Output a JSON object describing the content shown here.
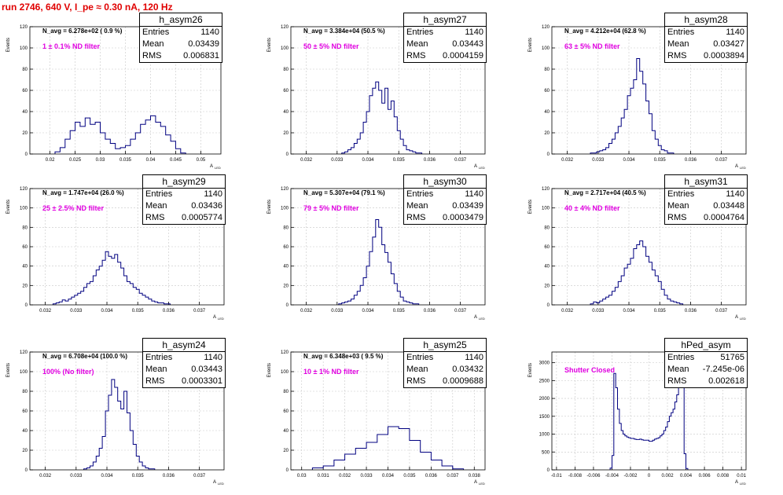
{
  "page": {
    "title": "run 2746,   640 V, I_pe ≈ 0.30 nA, 120 Hz"
  },
  "colors": {
    "hist": "#000080",
    "title": "#e00000",
    "filter_text": "#e000e0",
    "grid": "#c8c8c8"
  },
  "axis_labels": {
    "y": "Events",
    "x": "A",
    "x_sub": "LED"
  },
  "stat_labels": {
    "entries": "Entries",
    "mean": "Mean",
    "rms": "RMS"
  },
  "panels": [
    {
      "name": "h_asym26",
      "entries": "1140",
      "mean": "0.03439",
      "rms": "0.006831",
      "navg": "N_avg = 6.278e+02 ( 0.9 %)",
      "filter": "1 ± 0.1% ND filter",
      "chart_data": {
        "type": "bar",
        "xlim": [
          0.016,
          0.054
        ],
        "ylim": [
          0,
          120
        ],
        "yticks": [
          "0",
          "20",
          "40",
          "60",
          "80",
          "100",
          "120"
        ],
        "xticks": [
          "0.02",
          "0.025",
          "0.03",
          "0.035",
          "0.04",
          "0.045",
          "0.05"
        ],
        "bin_centers": [
          0.0215,
          0.0225,
          0.0235,
          0.0245,
          0.0255,
          0.0265,
          0.0275,
          0.0285,
          0.0295,
          0.0305,
          0.0315,
          0.0325,
          0.0335,
          0.0345,
          0.0355,
          0.0365,
          0.0375,
          0.0385,
          0.0395,
          0.0405,
          0.0415,
          0.0425,
          0.0435,
          0.0445,
          0.0455,
          0.0465
        ],
        "values": [
          2,
          6,
          14,
          22,
          30,
          26,
          34,
          28,
          30,
          20,
          14,
          10,
          5,
          6,
          8,
          14,
          20,
          28,
          32,
          36,
          30,
          26,
          18,
          12,
          5,
          1
        ]
      }
    },
    {
      "name": "h_asym27",
      "entries": "1140",
      "mean": "0.03443",
      "rms": "0.0004159",
      "navg": "N_avg = 3.384e+04 (50.5 %)",
      "filter": "50 ± 5% ND filter",
      "chart_data": {
        "type": "bar",
        "xlim": [
          0.0315,
          0.0378
        ],
        "ylim": [
          0,
          120
        ],
        "yticks": [
          "0",
          "20",
          "40",
          "60",
          "80",
          "100",
          "120"
        ],
        "xticks": [
          "0.032",
          "0.033",
          "0.034",
          "0.035",
          "0.036",
          "0.037"
        ],
        "bin_centers": [
          0.0332,
          0.0333,
          0.0334,
          0.0335,
          0.0336,
          0.0337,
          0.0338,
          0.0339,
          0.034,
          0.0341,
          0.0342,
          0.0343,
          0.0344,
          0.0345,
          0.0346,
          0.0347,
          0.0348,
          0.0349,
          0.035,
          0.0351,
          0.0352,
          0.0353,
          0.0354,
          0.0355,
          0.0356,
          0.0357
        ],
        "values": [
          1,
          2,
          4,
          6,
          10,
          14,
          20,
          30,
          40,
          55,
          62,
          68,
          60,
          48,
          62,
          42,
          50,
          35,
          22,
          14,
          8,
          4,
          3,
          2,
          1,
          1
        ]
      }
    },
    {
      "name": "h_asym28",
      "entries": "1140",
      "mean": "0.03427",
      "rms": "0.0003894",
      "navg": "N_avg = 4.212e+04 (62.8 %)",
      "filter": "63 ± 5% ND filter",
      "chart_data": {
        "type": "bar",
        "xlim": [
          0.0315,
          0.0378
        ],
        "ylim": [
          0,
          120
        ],
        "yticks": [
          "0",
          "20",
          "40",
          "60",
          "80",
          "100",
          "120"
        ],
        "xticks": [
          "0.032",
          "0.033",
          "0.034",
          "0.035",
          "0.036",
          "0.037"
        ],
        "bin_centers": [
          0.0328,
          0.0329,
          0.033,
          0.0331,
          0.0332,
          0.0333,
          0.0334,
          0.0335,
          0.0336,
          0.0337,
          0.0338,
          0.0339,
          0.034,
          0.0341,
          0.0342,
          0.0343,
          0.0344,
          0.0345,
          0.0346,
          0.0347,
          0.0348,
          0.0349,
          0.035,
          0.0351,
          0.0352,
          0.0353,
          0.0354
        ],
        "values": [
          1,
          1,
          2,
          3,
          4,
          6,
          10,
          14,
          20,
          26,
          34,
          42,
          55,
          62,
          70,
          90,
          78,
          66,
          50,
          38,
          22,
          14,
          8,
          4,
          3,
          1,
          1
        ]
      }
    },
    {
      "name": "h_asym29",
      "entries": "1140",
      "mean": "0.03436",
      "rms": "0.0005774",
      "navg": "N_avg = 1.747e+04 (26.0 %)",
      "filter": "25 ± 2.5% ND filter",
      "chart_data": {
        "type": "bar",
        "xlim": [
          0.0315,
          0.0378
        ],
        "ylim": [
          0,
          120
        ],
        "yticks": [
          "0",
          "20",
          "40",
          "60",
          "80",
          "100",
          "120"
        ],
        "xticks": [
          "0.032",
          "0.033",
          "0.034",
          "0.035",
          "0.036",
          "0.037"
        ],
        "bin_centers": [
          0.0323,
          0.0324,
          0.0325,
          0.0326,
          0.0327,
          0.0328,
          0.0329,
          0.033,
          0.0331,
          0.0332,
          0.0333,
          0.0334,
          0.0335,
          0.0336,
          0.0337,
          0.0338,
          0.0339,
          0.034,
          0.0341,
          0.0342,
          0.0343,
          0.0344,
          0.0345,
          0.0346,
          0.0347,
          0.0348,
          0.0349,
          0.035,
          0.0351,
          0.0352,
          0.0353,
          0.0354,
          0.0355,
          0.0356,
          0.0357,
          0.0358,
          0.0359,
          0.036
        ],
        "values": [
          1,
          2,
          3,
          5,
          4,
          6,
          8,
          10,
          12,
          14,
          18,
          22,
          24,
          30,
          36,
          40,
          46,
          55,
          50,
          48,
          52,
          44,
          38,
          30,
          24,
          22,
          18,
          16,
          12,
          10,
          8,
          6,
          4,
          3,
          2,
          2,
          1,
          1
        ]
      }
    },
    {
      "name": "h_asym30",
      "entries": "1140",
      "mean": "0.03439",
      "rms": "0.0003479",
      "navg": "N_avg = 5.307e+04 (79.1 %)",
      "filter": "79 ± 5% ND filter",
      "chart_data": {
        "type": "bar",
        "xlim": [
          0.0315,
          0.0378
        ],
        "ylim": [
          0,
          120
        ],
        "yticks": [
          "0",
          "20",
          "40",
          "60",
          "80",
          "100",
          "120"
        ],
        "xticks": [
          "0.032",
          "0.033",
          "0.034",
          "0.035",
          "0.036",
          "0.037"
        ],
        "bin_centers": [
          0.0331,
          0.0332,
          0.0333,
          0.0334,
          0.0335,
          0.0336,
          0.0337,
          0.0338,
          0.0339,
          0.034,
          0.0341,
          0.0342,
          0.0343,
          0.0344,
          0.0345,
          0.0346,
          0.0347,
          0.0348,
          0.0349,
          0.035,
          0.0351,
          0.0352,
          0.0353,
          0.0354,
          0.0355,
          0.0356
        ],
        "values": [
          1,
          2,
          3,
          4,
          6,
          10,
          14,
          20,
          28,
          40,
          55,
          70,
          88,
          80,
          62,
          54,
          44,
          32,
          22,
          14,
          8,
          4,
          3,
          2,
          1,
          1
        ]
      }
    },
    {
      "name": "h_asym31",
      "entries": "1140",
      "mean": "0.03448",
      "rms": "0.0004764",
      "navg": "N_avg = 2.717e+04 (40.5 %)",
      "filter": "40 ± 4% ND filter",
      "chart_data": {
        "type": "bar",
        "xlim": [
          0.0315,
          0.0378
        ],
        "ylim": [
          0,
          120
        ],
        "yticks": [
          "0",
          "20",
          "40",
          "60",
          "80",
          "100",
          "120"
        ],
        "xticks": [
          "0.032",
          "0.033",
          "0.034",
          "0.035",
          "0.036",
          "0.037"
        ],
        "bin_centers": [
          0.0328,
          0.0329,
          0.033,
          0.0331,
          0.0332,
          0.0333,
          0.0334,
          0.0335,
          0.0336,
          0.0337,
          0.0338,
          0.0339,
          0.034,
          0.0341,
          0.0342,
          0.0343,
          0.0344,
          0.0345,
          0.0346,
          0.0347,
          0.0348,
          0.0349,
          0.035,
          0.0351,
          0.0352,
          0.0353,
          0.0354,
          0.0355,
          0.0356,
          0.0357
        ],
        "values": [
          1,
          3,
          2,
          4,
          6,
          8,
          10,
          14,
          18,
          24,
          30,
          38,
          42,
          48,
          58,
          62,
          66,
          60,
          50,
          44,
          36,
          30,
          24,
          16,
          10,
          6,
          4,
          3,
          2,
          1
        ]
      }
    },
    {
      "name": "h_asym24",
      "entries": "1140",
      "mean": "0.03443",
      "rms": "0.0003301",
      "navg": "N_avg = 6.708e+04 (100.0 %)",
      "filter": "100% (No filter)",
      "chart_data": {
        "type": "bar",
        "xlim": [
          0.0315,
          0.0378
        ],
        "ylim": [
          0,
          120
        ],
        "yticks": [
          "0",
          "20",
          "40",
          "60",
          "80",
          "100",
          "120"
        ],
        "xticks": [
          "0.032",
          "0.033",
          "0.034",
          "0.035",
          "0.036",
          "0.037"
        ],
        "bin_centers": [
          0.0333,
          0.0334,
          0.0335,
          0.0336,
          0.0337,
          0.0338,
          0.0339,
          0.034,
          0.0341,
          0.0342,
          0.0343,
          0.0344,
          0.0345,
          0.0346,
          0.0347,
          0.0348,
          0.0349,
          0.035,
          0.0351,
          0.0352,
          0.0353,
          0.0354,
          0.0355
        ],
        "values": [
          1,
          2,
          4,
          8,
          14,
          22,
          34,
          60,
          76,
          92,
          84,
          70,
          62,
          80,
          58,
          40,
          26,
          14,
          8,
          4,
          2,
          1,
          1
        ]
      }
    },
    {
      "name": "h_asym25",
      "entries": "1140",
      "mean": "0.03432",
      "rms": "0.0009688",
      "navg": "N_avg = 6.348e+03 ( 9.5 %)",
      "filter": "10 ± 1% ND filter",
      "chart_data": {
        "type": "bar",
        "xlim": [
          0.0295,
          0.0385
        ],
        "ylim": [
          0,
          120
        ],
        "yticks": [
          "0",
          "20",
          "40",
          "60",
          "80",
          "100",
          "120"
        ],
        "xticks": [
          "0.03",
          "0.031",
          "0.032",
          "0.033",
          "0.034",
          "0.035",
          "0.036",
          "0.037",
          "0.038"
        ],
        "bin_centers": [
          0.03075,
          0.03125,
          0.03175,
          0.03225,
          0.03275,
          0.03325,
          0.03375,
          0.03425,
          0.03475,
          0.03525,
          0.03575,
          0.03625,
          0.03675,
          0.03725
        ],
        "values": [
          2,
          4,
          10,
          16,
          22,
          28,
          36,
          44,
          42,
          30,
          18,
          10,
          4,
          1
        ]
      }
    },
    {
      "name": "hPed_asym",
      "entries": "51765",
      "mean": "-7.245e-06",
      "rms": "0.002618",
      "navg": "",
      "filter": "Shutter Closed",
      "chart_data": {
        "type": "bar",
        "xlim": [
          -0.0105,
          0.0105
        ],
        "ylim": [
          0,
          3300
        ],
        "yticks": [
          "0",
          "500",
          "1000",
          "1500",
          "2000",
          "2500",
          "3000"
        ],
        "xticks": [
          "-0.01",
          "-0.008",
          "-0.006",
          "-0.004",
          "-0.002",
          "0",
          "0.002",
          "0.004",
          "0.006",
          "0.008",
          "0.01"
        ],
        "bin_centers": [
          -0.0041,
          -0.0039,
          -0.0037,
          -0.0035,
          -0.0033,
          -0.0031,
          -0.0029,
          -0.0027,
          -0.0025,
          -0.0023,
          -0.0021,
          -0.0019,
          -0.0017,
          -0.0015,
          -0.0013,
          -0.0011,
          -0.0009,
          -0.0007,
          -0.0005,
          -0.0003,
          -0.0001,
          0.0001,
          0.0003,
          0.0005,
          0.0007,
          0.0009,
          0.0011,
          0.0013,
          0.0015,
          0.0017,
          0.0019,
          0.0021,
          0.0023,
          0.0025,
          0.0027,
          0.0029,
          0.0031,
          0.0033,
          0.0035,
          0.0037,
          0.0039,
          0.0041
        ],
        "values": [
          50,
          400,
          2700,
          2300,
          1700,
          1300,
          1100,
          1000,
          950,
          920,
          900,
          880,
          880,
          860,
          850,
          850,
          860,
          840,
          830,
          830,
          830,
          800,
          800,
          830,
          860,
          880,
          900,
          950,
          1000,
          1100,
          1200,
          1350,
          1500,
          1600,
          1700,
          1900,
          2100,
          2400,
          2900,
          3100,
          450,
          40
        ]
      }
    }
  ]
}
